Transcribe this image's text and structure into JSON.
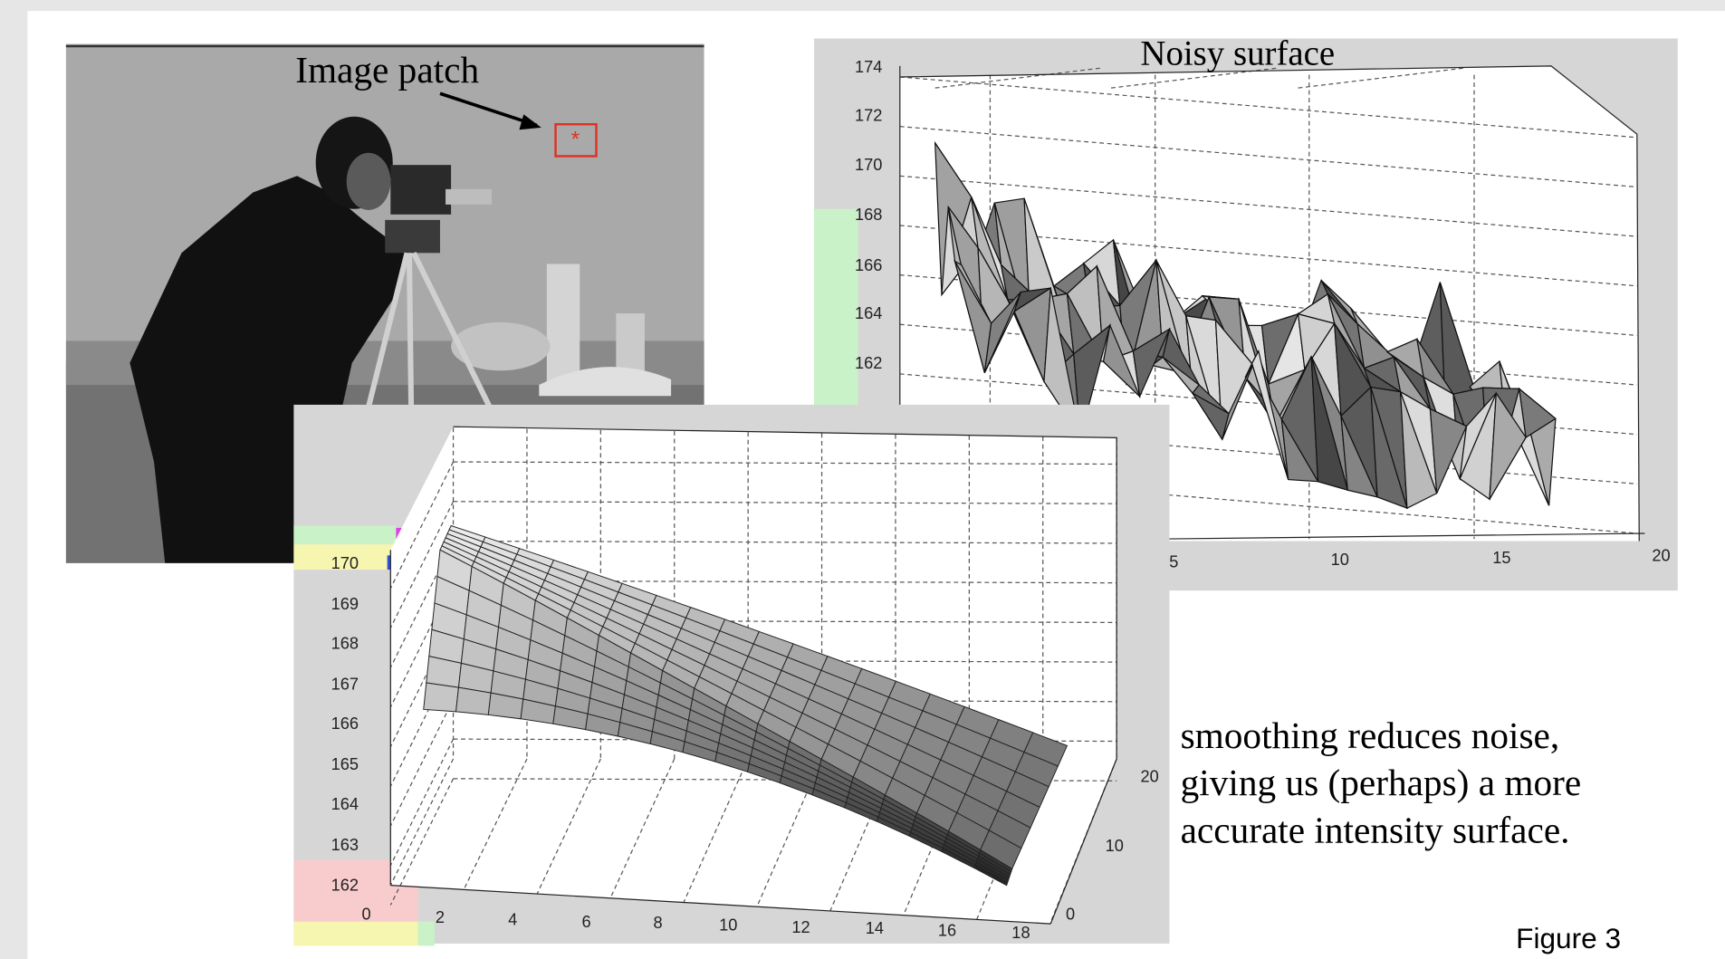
{
  "slide": {
    "photo": {
      "label": "Image patch"
    },
    "noisy_plot": {
      "title": "Noisy surface",
      "z_ticks": [
        "174",
        "172",
        "170",
        "168",
        "166",
        "164",
        "162"
      ],
      "x_ticks": [
        "5",
        "10",
        "15",
        "20"
      ]
    },
    "smooth_plot": {
      "z_ticks": [
        "170",
        "169",
        "168",
        "167",
        "166",
        "165",
        "164",
        "163",
        "162"
      ],
      "x_ticks": [
        "0",
        "2",
        "4",
        "6",
        "8",
        "10",
        "12",
        "14",
        "16",
        "18"
      ],
      "y_ticks": [
        "20",
        "10",
        "0"
      ]
    },
    "caption": [
      "smoothing reduces noise,",
      "giving us (perhaps) a more",
      "accurate intensity surface."
    ],
    "figure_label": "Figure 3"
  }
}
